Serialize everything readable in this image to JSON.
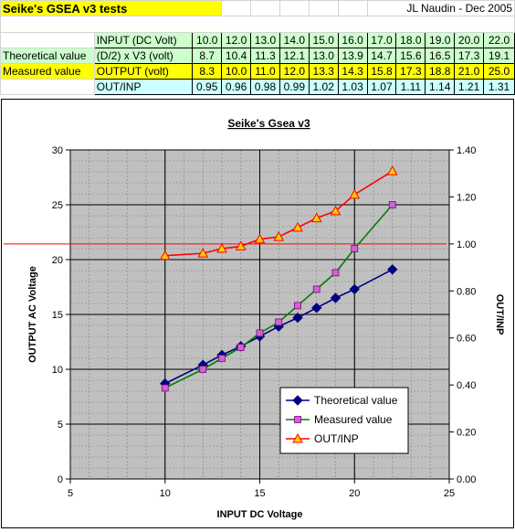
{
  "sheet": {
    "title": "Seike's GSEA v3 tests",
    "author": "JL Naudin  - Dec 2005",
    "rows": [
      {
        "label": "",
        "name": "INPUT (DC Volt)",
        "values": [
          "10.0",
          "12.0",
          "13.0",
          "14.0",
          "15.0",
          "16.0",
          "17.0",
          "18.0",
          "19.0",
          "20.0",
          "22.0"
        ],
        "color": "#ccffcc"
      },
      {
        "label": "Theoretical value",
        "name": "(D/2) x V3 (volt)",
        "values": [
          "8.7",
          "10.4",
          "11.3",
          "12.1",
          "13.0",
          "13.9",
          "14.7",
          "15.6",
          "16.5",
          "17.3",
          "19.1"
        ],
        "color": "#ccffcc"
      },
      {
        "label": "Measured value",
        "name": "OUTPUT (volt)",
        "values": [
          "8.3",
          "10.0",
          "11.0",
          "12.0",
          "13.3",
          "14.3",
          "15.8",
          "17.3",
          "18.8",
          "21.0",
          "25.0"
        ],
        "color": "#ffff00"
      },
      {
        "label": "",
        "name": "OUT/INP",
        "values": [
          "0.95",
          "0.96",
          "0.98",
          "0.99",
          "1.02",
          "1.03",
          "1.07",
          "1.11",
          "1.14",
          "1.21",
          "1.31"
        ],
        "color": "#ccffff"
      }
    ]
  },
  "chart_data": {
    "type": "line",
    "title": "Seike's Gsea v3",
    "xlabel": "INPUT DC Voltage",
    "ylabel": "OUTPUT AC Voltage",
    "y2label": "OUT/INP",
    "xlim": [
      5,
      25
    ],
    "ylim": [
      0,
      30
    ],
    "y2lim": [
      0.0,
      1.4
    ],
    "x_ticks": [
      "5",
      "10",
      "15",
      "20",
      "25"
    ],
    "y_ticks": [
      "0",
      "5",
      "10",
      "15",
      "20",
      "25",
      "30"
    ],
    "y2_ticks": [
      "0.00",
      "0.20",
      "0.40",
      "0.60",
      "0.80",
      "1.00",
      "1.20",
      "1.40"
    ],
    "grid": true,
    "reference_line_y2": 1.0,
    "legend_position": "bottom-right",
    "x": [
      10,
      12,
      13,
      14,
      15,
      16,
      17,
      18,
      19,
      20,
      22
    ],
    "series": [
      {
        "name": "Theoretical value",
        "axis": "left",
        "color": "#000080",
        "marker": "diamond",
        "values": [
          8.7,
          10.4,
          11.3,
          12.1,
          13.0,
          13.9,
          14.7,
          15.6,
          16.5,
          17.3,
          19.1
        ]
      },
      {
        "name": "Measured value",
        "axis": "left",
        "color": "#008000",
        "marker": "square",
        "marker_color": "#cc66cc",
        "values": [
          8.3,
          10.0,
          11.0,
          12.0,
          13.3,
          14.3,
          15.8,
          17.3,
          18.8,
          21.0,
          25.0
        ]
      },
      {
        "name": "OUT/INP",
        "axis": "right",
        "color": "#ff0000",
        "marker": "triangle",
        "marker_color": "#ffcc00",
        "values": [
          0.95,
          0.96,
          0.98,
          0.99,
          1.02,
          1.03,
          1.07,
          1.11,
          1.14,
          1.21,
          1.31
        ]
      }
    ]
  }
}
